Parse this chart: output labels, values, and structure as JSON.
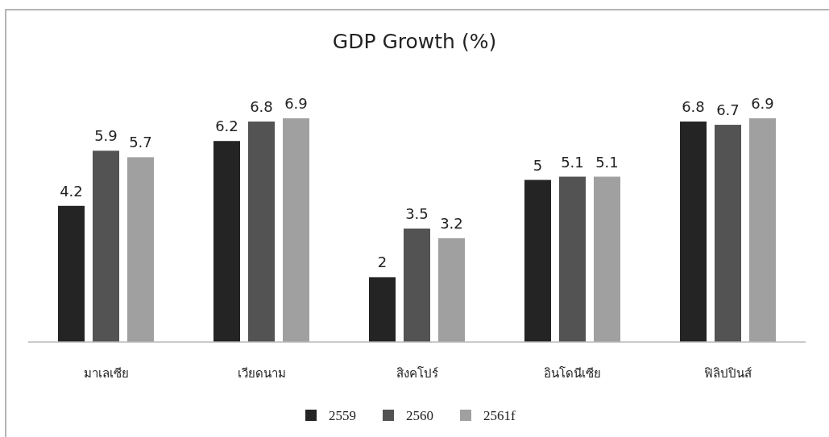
{
  "chart_data": {
    "type": "bar",
    "title": "GDP Growth (%)",
    "categories": [
      "มาเลเซีย",
      "เวียดนาม",
      "สิงคโปร์",
      "อินโดนีเซีย",
      "ฟิลิปปินส์"
    ],
    "series": [
      {
        "name": "2559",
        "color": "#242424",
        "values": [
          4.2,
          6.2,
          2,
          5,
          6.8
        ]
      },
      {
        "name": "2560",
        "color": "#535353",
        "values": [
          5.9,
          6.8,
          3.5,
          5.1,
          6.7
        ]
      },
      {
        "name": "2561f",
        "color": "#a0a0a0",
        "values": [
          5.7,
          6.9,
          3.2,
          5.1,
          6.9
        ]
      }
    ],
    "tick_labels": "x",
    "data_labels": true,
    "legend": "bottom"
  }
}
